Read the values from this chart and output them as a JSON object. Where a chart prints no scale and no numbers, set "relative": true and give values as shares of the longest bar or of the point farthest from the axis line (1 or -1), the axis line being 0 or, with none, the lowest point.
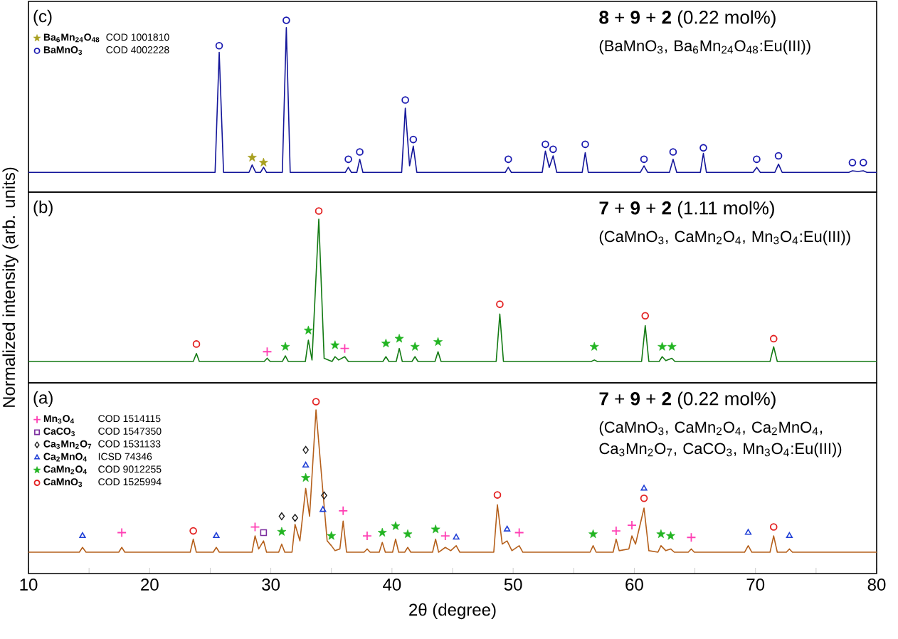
{
  "chart_data": [
    {
      "type": "line",
      "title": "**8** + **9** + **2** (0.22 mol%)",
      "subtitle": "(BaMnO$_{3}$, Ba$_{6}$Mn$_{24}$O$_{48}$:Eu(III))",
      "annotations": [
        "(c)",
        "COD 1001810",
        "COD 4002228"
      ],
      "relative": true,
      "xlim": [
        10,
        80
      ],
      "tick_labels": false,
      "legend": "top left",
      "series": [
        {
          "color": "#14169a",
          "x": [
            10,
            25.4,
            25.74,
            26.1,
            28.2,
            28.46,
            28.75,
            29.15,
            29.4,
            29.65,
            30.95,
            31.28,
            31.6,
            36.15,
            36.4,
            36.65,
            37.1,
            37.34,
            37.6,
            40.8,
            41.1,
            41.45,
            41.76,
            42.05,
            49.35,
            49.6,
            49.85,
            52.4,
            52.66,
            52.98,
            53.3,
            53.6,
            55.7,
            55.95,
            56.2,
            60.5,
            60.8,
            61.1,
            62.9,
            63.2,
            63.5,
            65.45,
            65.7,
            65.95,
            69.8,
            70.1,
            70.4,
            71.6,
            71.9,
            72.2,
            77.7,
            78.0,
            78.45,
            78.9,
            79.2,
            80
          ],
          "values": [
            0.115,
            0.115,
            0.813,
            0.115,
            0.115,
            0.158,
            0.115,
            0.115,
            0.144,
            0.115,
            0.115,
            0.957,
            0.115,
            0.115,
            0.144,
            0.115,
            0.115,
            0.191,
            0.115,
            0.115,
            0.488,
            0.153,
            0.268,
            0.115,
            0.115,
            0.144,
            0.115,
            0.115,
            0.239,
            0.144,
            0.211,
            0.115,
            0.115,
            0.23,
            0.115,
            0.115,
            0.153,
            0.115,
            0.115,
            0.191,
            0.115,
            0.115,
            0.225,
            0.115,
            0.115,
            0.144,
            0.115,
            0.115,
            0.163,
            0.115,
            0.115,
            0.124,
            0.12,
            0.124,
            0.115,
            0.115
          ]
        },
        {
          "type": "scatter",
          "name": "Ba$_{6}$Mn$_{24}$O$_{48}$",
          "color": "#a8a020",
          "marker": "star",
          "x": [
            28.46,
            29.4
          ],
          "values": [
            0.201,
            0.172
          ]
        },
        {
          "type": "scatter",
          "name": "BaMnO$_{3}$",
          "color": "#1a1ab0",
          "marker": "circle",
          "x": [
            25.74,
            31.28,
            36.4,
            37.34,
            41.1,
            41.76,
            49.6,
            52.66,
            53.3,
            55.95,
            60.8,
            63.2,
            65.7,
            70.1,
            71.9,
            78.0,
            78.9
          ],
          "values": [
            0.852,
            1,
            0.191,
            0.234,
            0.536,
            0.306,
            0.191,
            0.278,
            0.249,
            0.278,
            0.191,
            0.234,
            0.258,
            0.191,
            0.211,
            0.172,
            0.172
          ]
        }
      ]
    },
    {
      "type": "line",
      "title": "**7** + **9** + **2** (1.11 mol%)",
      "subtitle": "(CaMnO$_{3}$, CaMn$_{2}$O$_{4}$, Mn$_{3}$O$_{4}$:Eu(III))",
      "ylabel": "Normalized intensity (arb. units)",
      "annotations": [
        "(b)"
      ],
      "relative": true,
      "xlim": [
        10,
        80
      ],
      "tick_labels": false,
      "series": [
        {
          "color": "#137a13",
          "x": [
            10,
            23.6,
            23.86,
            24.1,
            29.45,
            29.7,
            29.95,
            30.95,
            31.2,
            31.45,
            32.85,
            33.1,
            33.4,
            33.96,
            34.4,
            35.05,
            35.3,
            35.6,
            36.1,
            36.4,
            39.25,
            39.5,
            39.75,
            40.35,
            40.6,
            40.85,
            41.65,
            41.9,
            42.15,
            43.55,
            43.8,
            44.05,
            48.6,
            48.9,
            49.2,
            56.45,
            56.7,
            56.95,
            60.6,
            60.9,
            61.2,
            62.05,
            62.3,
            62.6,
            63.1,
            63.35,
            71.2,
            71.5,
            71.8,
            80
          ],
          "values": [
            0.124,
            0.124,
            0.171,
            0.124,
            0.124,
            0.143,
            0.124,
            0.124,
            0.157,
            0.124,
            0.124,
            0.248,
            0.133,
            0.952,
            0.143,
            0.124,
            0.152,
            0.133,
            0.152,
            0.124,
            0.124,
            0.152,
            0.124,
            0.124,
            0.2,
            0.124,
            0.124,
            0.152,
            0.124,
            0.124,
            0.181,
            0.124,
            0.124,
            0.4,
            0.124,
            0.124,
            0.133,
            0.124,
            0.124,
            0.333,
            0.124,
            0.124,
            0.152,
            0.129,
            0.143,
            0.124,
            0.124,
            0.21,
            0.124,
            0.124
          ]
        },
        {
          "type": "scatter",
          "color": "#e32222",
          "marker": "circle",
          "x": [
            23.86,
            33.96,
            48.9,
            60.9,
            71.5
          ],
          "values": [
            0.226,
            1,
            0.457,
            0.39,
            0.257
          ]
        },
        {
          "type": "scatter",
          "color": "#ff3fb4",
          "marker": "cross",
          "x": [
            29.7,
            36.1
          ],
          "values": [
            0.181,
            0.2
          ]
        },
        {
          "type": "scatter",
          "color": "#22b422",
          "marker": "star",
          "x": [
            31.2,
            33.1,
            35.3,
            39.5,
            40.6,
            41.9,
            43.8,
            56.7,
            62.3,
            63.1
          ],
          "values": [
            0.21,
            0.305,
            0.219,
            0.229,
            0.257,
            0.21,
            0.238,
            0.21,
            0.21,
            0.21
          ]
        }
      ]
    },
    {
      "type": "line",
      "title": "**7** + **9** + **2** (0.22 mol%)",
      "subtitle": "(CaMnO$_{3}$, CaMn$_{2}$O$_{4}$, Ca$_{2}$MnO$_{4}$, Ca$_{3}$Mn$_{2}$O$_{7}$, CaCO$_{3}$, Mn$_{3}$O$_{4}$:Eu(III))",
      "xlabel": "2θ (degree)",
      "annotations": [
        "(a)",
        "COD 1514115",
        "COD 1547350",
        "COD 1531133",
        "ICSD 74346",
        "COD 9012255",
        "COD 1525994"
      ],
      "relative": true,
      "xlim": [
        10,
        80
      ],
      "xticks": [
        10,
        {
          "value": 15,
          "label": null
        },
        20,
        {
          "value": 25,
          "label": null
        },
        30,
        {
          "value": 35,
          "label": null
        },
        40,
        {
          "value": 45,
          "label": null
        },
        50,
        {
          "value": 55,
          "label": null
        },
        60,
        {
          "value": 65,
          "label": null
        },
        70,
        {
          "value": 75,
          "label": null
        },
        80
      ],
      "tick_labels": "x",
      "legend": "top left",
      "series": [
        {
          "color": "#b5601c",
          "x": [
            10,
            14.2,
            14.46,
            14.75,
            17.45,
            17.7,
            17.95,
            23.35,
            23.6,
            23.85,
            25.25,
            25.5,
            25.75,
            28.45,
            28.7,
            29.0,
            29.4,
            29.65,
            30.65,
            30.9,
            31.15,
            31.75,
            32.0,
            32.4,
            32.88,
            33.2,
            33.73,
            34.3,
            34.65,
            35.0,
            35.3,
            35.7,
            35.97,
            36.25,
            37.7,
            37.95,
            38.2,
            38.95,
            39.2,
            39.45,
            40.05,
            40.3,
            40.55,
            41.05,
            41.3,
            41.55,
            43.35,
            43.6,
            43.85,
            44.4,
            44.85,
            45.3,
            45.6,
            48.4,
            48.7,
            49.1,
            49.5,
            49.9,
            50.5,
            50.8,
            56.35,
            56.6,
            56.85,
            58.25,
            58.5,
            58.75,
            59.55,
            59.8,
            60.1,
            60.8,
            61.2,
            61.95,
            62.2,
            62.6,
            63.0,
            63.3,
            64.45,
            64.7,
            64.95,
            69.1,
            69.4,
            69.7,
            71.2,
            71.5,
            71.8,
            72.55,
            72.8,
            73.05,
            80
          ],
          "values": [
            0.124,
            0.124,
            0.152,
            0.124,
            0.124,
            0.152,
            0.124,
            0.124,
            0.2,
            0.124,
            0.124,
            0.152,
            0.124,
            0.124,
            0.219,
            0.143,
            0.19,
            0.124,
            0.124,
            0.171,
            0.124,
            0.124,
            0.286,
            0.19,
            0.495,
            0.333,
            0.952,
            0.476,
            0.19,
            0.162,
            0.133,
            0.143,
            0.305,
            0.124,
            0.124,
            0.143,
            0.124,
            0.124,
            0.181,
            0.124,
            0.124,
            0.2,
            0.124,
            0.124,
            0.152,
            0.124,
            0.124,
            0.2,
            0.124,
            0.152,
            0.133,
            0.162,
            0.124,
            0.124,
            0.4,
            0.171,
            0.19,
            0.133,
            0.162,
            0.124,
            0.124,
            0.162,
            0.124,
            0.124,
            0.2,
            0.133,
            0.143,
            0.219,
            0.171,
            0.381,
            0.133,
            0.124,
            0.162,
            0.133,
            0.143,
            0.124,
            0.124,
            0.143,
            0.124,
            0.124,
            0.162,
            0.124,
            0.124,
            0.219,
            0.124,
            0.124,
            0.143,
            0.124,
            0.124
          ]
        },
        {
          "type": "scatter",
          "name": "Mn$_{3}$O$_{4}$",
          "color": "#ff3fb4",
          "marker": "cross",
          "x": [
            17.7,
            28.7,
            35.97,
            37.95,
            44.4,
            50.5,
            58.5,
            59.8,
            64.7
          ],
          "values": [
            0.238,
            0.271,
            0.365,
            0.219,
            0.219,
            0.238,
            0.248,
            0.281,
            0.21
          ]
        },
        {
          "type": "scatter",
          "name": "CaCO$_{3}$",
          "color": "#7b2d9e",
          "marker": "square",
          "x": [
            29.4
          ],
          "values": [
            0.238
          ]
        },
        {
          "type": "scatter",
          "name": "Ca$_{3}$Mn$_{2}$O$_{7}$",
          "color": "#1a1a1a",
          "marker": "diamond",
          "x": [
            30.9,
            32.0,
            32.88,
            34.4
          ],
          "values": [
            0.333,
            0.324,
            0.719,
            0.454
          ]
        },
        {
          "type": "scatter",
          "name": "Ca$_{2}$MnO$_{4}$",
          "color": "#1f3fd6",
          "marker": "triangle",
          "x": [
            14.46,
            25.5,
            32.88,
            34.3,
            45.3,
            49.5,
            60.8,
            69.4,
            72.8
          ],
          "values": [
            0.219,
            0.219,
            0.629,
            0.371,
            0.21,
            0.257,
            0.495,
            0.238,
            0.219
          ]
        },
        {
          "type": "scatter",
          "name": "CaMn$_{2}$O$_{4}$",
          "color": "#22b422",
          "marker": "star",
          "x": [
            30.9,
            32.88,
            35.0,
            39.2,
            40.3,
            41.3,
            43.6,
            56.6,
            62.2,
            63.0
          ],
          "values": [
            0.243,
            0.557,
            0.219,
            0.238,
            0.276,
            0.229,
            0.257,
            0.229,
            0.229,
            0.219
          ]
        },
        {
          "type": "scatter",
          "name": "CaMnO$_{3}$",
          "color": "#e32222",
          "marker": "circle",
          "x": [
            23.6,
            33.73,
            48.7,
            60.8,
            71.5
          ],
          "values": [
            0.248,
            1,
            0.457,
            0.438,
            0.271
          ]
        }
      ]
    }
  ]
}
